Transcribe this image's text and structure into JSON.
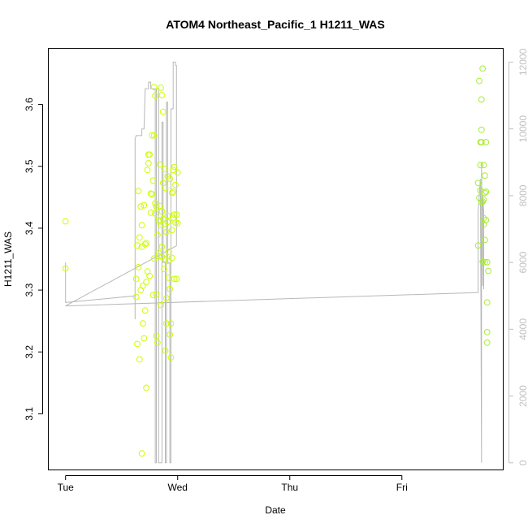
{
  "chart_data": {
    "type": "scatter",
    "title": "ATOM4 Northeast_Pacific_1 H1211_WAS",
    "xlabel": "Date",
    "ylabel": "H1211_WAS",
    "x_ticks": [
      "Tue",
      "Wed",
      "Thu",
      "Fri"
    ],
    "x_tick_days": [
      0,
      1,
      2,
      3
    ],
    "xlim_days": [
      -0.15,
      3.9
    ],
    "ylim": [
      3.01,
      3.69
    ],
    "y_ticks": [
      "3.1",
      "3.2",
      "3.3",
      "3.4",
      "3.5",
      "3.6"
    ],
    "y_tick_values": [
      3.1,
      3.2,
      3.3,
      3.4,
      3.5,
      3.6
    ],
    "y2lim": [
      -200,
      12400
    ],
    "y2_ticks": [
      "0",
      "2000",
      "4000",
      "6000",
      "8000",
      "10000",
      "12000"
    ],
    "y2_tick_values": [
      0,
      2000,
      4000,
      6000,
      8000,
      10000,
      12000
    ],
    "grid": false,
    "series": [
      {
        "color": "#ccff00",
        "marker": "open-circle",
        "points": [
          [
            0.0,
            3.411
          ],
          [
            0.0,
            3.335
          ],
          [
            0.63,
            3.318
          ],
          [
            0.63,
            3.289
          ],
          [
            0.64,
            3.213
          ],
          [
            0.64,
            3.372
          ],
          [
            0.65,
            3.46
          ],
          [
            0.65,
            3.337
          ],
          [
            0.66,
            3.188
          ],
          [
            0.66,
            3.385
          ],
          [
            0.67,
            3.3
          ],
          [
            0.67,
            3.435
          ],
          [
            0.68,
            3.405
          ],
          [
            0.68,
            3.37
          ],
          [
            0.68,
            3.036
          ],
          [
            0.69,
            3.246
          ],
          [
            0.69,
            3.307
          ],
          [
            0.7,
            3.222
          ],
          [
            0.7,
            3.437
          ],
          [
            0.71,
            3.374
          ],
          [
            0.71,
            3.267
          ],
          [
            0.72,
            3.142
          ],
          [
            0.72,
            3.376
          ],
          [
            0.72,
            3.313
          ],
          [
            0.73,
            3.33
          ],
          [
            0.73,
            3.494
          ],
          [
            0.74,
            3.505
          ],
          [
            0.74,
            3.519
          ],
          [
            0.75,
            3.519
          ],
          [
            0.75,
            3.323
          ],
          [
            0.76,
            3.456
          ],
          [
            0.76,
            3.425
          ],
          [
            0.77,
            3.455
          ],
          [
            0.77,
            3.55
          ],
          [
            0.78,
            3.292
          ],
          [
            0.78,
            3.477
          ],
          [
            0.79,
            3.55
          ],
          [
            0.79,
            3.628
          ],
          [
            0.8,
            3.614
          ],
          [
            0.8,
            3.424
          ],
          [
            0.81,
            3.293
          ],
          [
            0.81,
            3.226
          ],
          [
            0.82,
            3.215
          ],
          [
            0.82,
            3.389
          ],
          [
            0.83,
            3.413
          ],
          [
            0.83,
            3.36
          ],
          [
            0.84,
            3.503
          ],
          [
            0.84,
            3.436
          ],
          [
            0.85,
            3.627
          ],
          [
            0.85,
            3.276
          ],
          [
            0.86,
            3.354
          ],
          [
            0.86,
            3.37
          ],
          [
            0.87,
            3.473
          ],
          [
            0.87,
            3.588
          ],
          [
            0.87,
            3.415
          ],
          [
            0.88,
            3.334
          ],
          [
            0.88,
            3.496
          ],
          [
            0.89,
            3.202
          ],
          [
            0.89,
            3.465
          ],
          [
            0.9,
            3.287
          ],
          [
            0.9,
            3.394
          ],
          [
            0.9,
            3.246
          ],
          [
            0.91,
            3.42
          ],
          [
            0.91,
            3.41
          ],
          [
            0.92,
            3.32
          ],
          [
            0.92,
            3.347
          ],
          [
            0.93,
            3.228
          ],
          [
            0.93,
            3.48
          ],
          [
            0.94,
            3.191
          ],
          [
            0.94,
            3.246
          ],
          [
            0.95,
            3.457
          ],
          [
            0.95,
            3.352
          ],
          [
            0.96,
            3.417
          ],
          [
            0.96,
            3.494
          ],
          [
            0.97,
            3.422
          ],
          [
            0.97,
            3.318
          ],
          [
            0.97,
            3.499
          ],
          [
            0.98,
            3.409
          ],
          [
            0.98,
            3.47
          ],
          [
            0.99,
            3.422
          ],
          [
            0.99,
            3.318
          ],
          [
            1.0,
            3.49
          ],
          [
            1.0,
            3.408
          ],
          [
            0.86,
            3.427
          ],
          [
            0.84,
            3.411
          ],
          [
            0.88,
            3.407
          ],
          [
            0.81,
            3.435
          ],
          [
            0.83,
            3.355
          ],
          [
            0.86,
            3.615
          ],
          [
            0.91,
            3.484
          ],
          [
            0.93,
            3.302
          ],
          [
            0.95,
            3.397
          ],
          [
            0.79,
            3.351
          ],
          [
            0.92,
            3.362
          ],
          [
            0.96,
            3.459
          ],
          [
            0.89,
            3.35
          ],
          [
            0.85,
            3.405
          ],
          [
            0.8,
            3.44
          ]
        ]
      },
      {
        "color": "#a6ee33",
        "marker": "open-circle",
        "points": [
          [
            3.68,
            3.473
          ],
          [
            3.68,
            3.372
          ],
          [
            3.69,
            3.449
          ],
          [
            3.69,
            3.638
          ],
          [
            3.7,
            3.539
          ],
          [
            3.7,
            3.502
          ],
          [
            3.71,
            3.539
          ],
          [
            3.71,
            3.442
          ],
          [
            3.71,
            3.608
          ],
          [
            3.72,
            3.443
          ],
          [
            3.72,
            3.658
          ],
          [
            3.72,
            3.346
          ],
          [
            3.73,
            3.502
          ],
          [
            3.73,
            3.446
          ],
          [
            3.73,
            3.416
          ],
          [
            3.74,
            3.485
          ],
          [
            3.74,
            3.381
          ],
          [
            3.74,
            3.345
          ],
          [
            3.75,
            3.539
          ],
          [
            3.75,
            3.413
          ],
          [
            3.75,
            3.459
          ],
          [
            3.76,
            3.28
          ],
          [
            3.76,
            3.232
          ],
          [
            3.76,
            3.215
          ],
          [
            3.76,
            3.345
          ],
          [
            3.77,
            3.331
          ],
          [
            3.71,
            3.559
          ],
          [
            3.7,
            3.461
          ],
          [
            3.73,
            3.406
          ],
          [
            3.74,
            3.457
          ]
        ]
      }
    ],
    "line_series": {
      "axis": "right",
      "color": "#b8b8b8",
      "points": [
        [
          0.0,
          6000
        ],
        [
          0.0,
          4800
        ],
        [
          0.62,
          5000
        ],
        [
          0.62,
          4300
        ],
        [
          0.62,
          9700
        ],
        [
          0.63,
          9800
        ],
        [
          0.68,
          9800
        ],
        [
          0.68,
          10000
        ],
        [
          0.7,
          10000
        ],
        [
          0.71,
          11200
        ],
        [
          0.74,
          11200
        ],
        [
          0.74,
          11400
        ],
        [
          0.76,
          11400
        ],
        [
          0.76,
          11200
        ],
        [
          0.8,
          11200
        ],
        [
          0.8,
          0
        ],
        [
          0.81,
          0
        ],
        [
          0.81,
          11200
        ],
        [
          0.83,
          11200
        ],
        [
          0.83,
          0
        ],
        [
          0.84,
          0
        ],
        [
          0.86,
          0
        ],
        [
          0.86,
          10200
        ],
        [
          0.87,
          10200
        ],
        [
          0.87,
          6000
        ],
        [
          0.89,
          6000
        ],
        [
          0.89,
          0
        ],
        [
          0.9,
          0
        ],
        [
          0.9,
          10800
        ],
        [
          0.91,
          10800
        ],
        [
          0.91,
          6000
        ],
        [
          0.93,
          6000
        ],
        [
          0.93,
          0
        ],
        [
          0.94,
          0
        ],
        [
          0.94,
          10600
        ],
        [
          0.95,
          10600
        ],
        [
          0.96,
          10600
        ],
        [
          0.96,
          12000
        ],
        [
          0.98,
          12000
        ],
        [
          0.98,
          11900
        ],
        [
          0.99,
          11900
        ],
        [
          0.99,
          6500
        ],
        [
          0.0,
          4700
        ],
        [
          3.68,
          5100
        ],
        [
          3.68,
          7500
        ],
        [
          3.7,
          8500
        ],
        [
          3.71,
          0
        ],
        [
          3.71,
          9000
        ],
        [
          3.72,
          5300
        ],
        [
          3.72,
          8000
        ],
        [
          3.73,
          7500
        ],
        [
          3.73,
          5200
        ]
      ]
    }
  }
}
